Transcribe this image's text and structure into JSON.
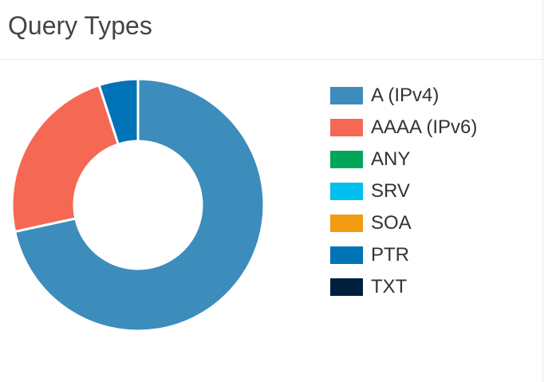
{
  "panel": {
    "title": "Query Types"
  },
  "chart_data": {
    "type": "pie",
    "style": "donut",
    "title": "Query Types",
    "legend_position": "right",
    "series": [
      {
        "name": "A (IPv4)",
        "value": 71.6,
        "color": "#3c8dbc"
      },
      {
        "name": "AAAA (IPv6)",
        "value": 23.4,
        "color": "#f56954"
      },
      {
        "name": "ANY",
        "value": 0,
        "color": "#00a65a"
      },
      {
        "name": "SRV",
        "value": 0,
        "color": "#00c0ef"
      },
      {
        "name": "SOA",
        "value": 0,
        "color": "#f39c12"
      },
      {
        "name": "PTR",
        "value": 5.0,
        "color": "#0073b7"
      },
      {
        "name": "TXT",
        "value": 0,
        "color": "#001f3f"
      }
    ]
  }
}
